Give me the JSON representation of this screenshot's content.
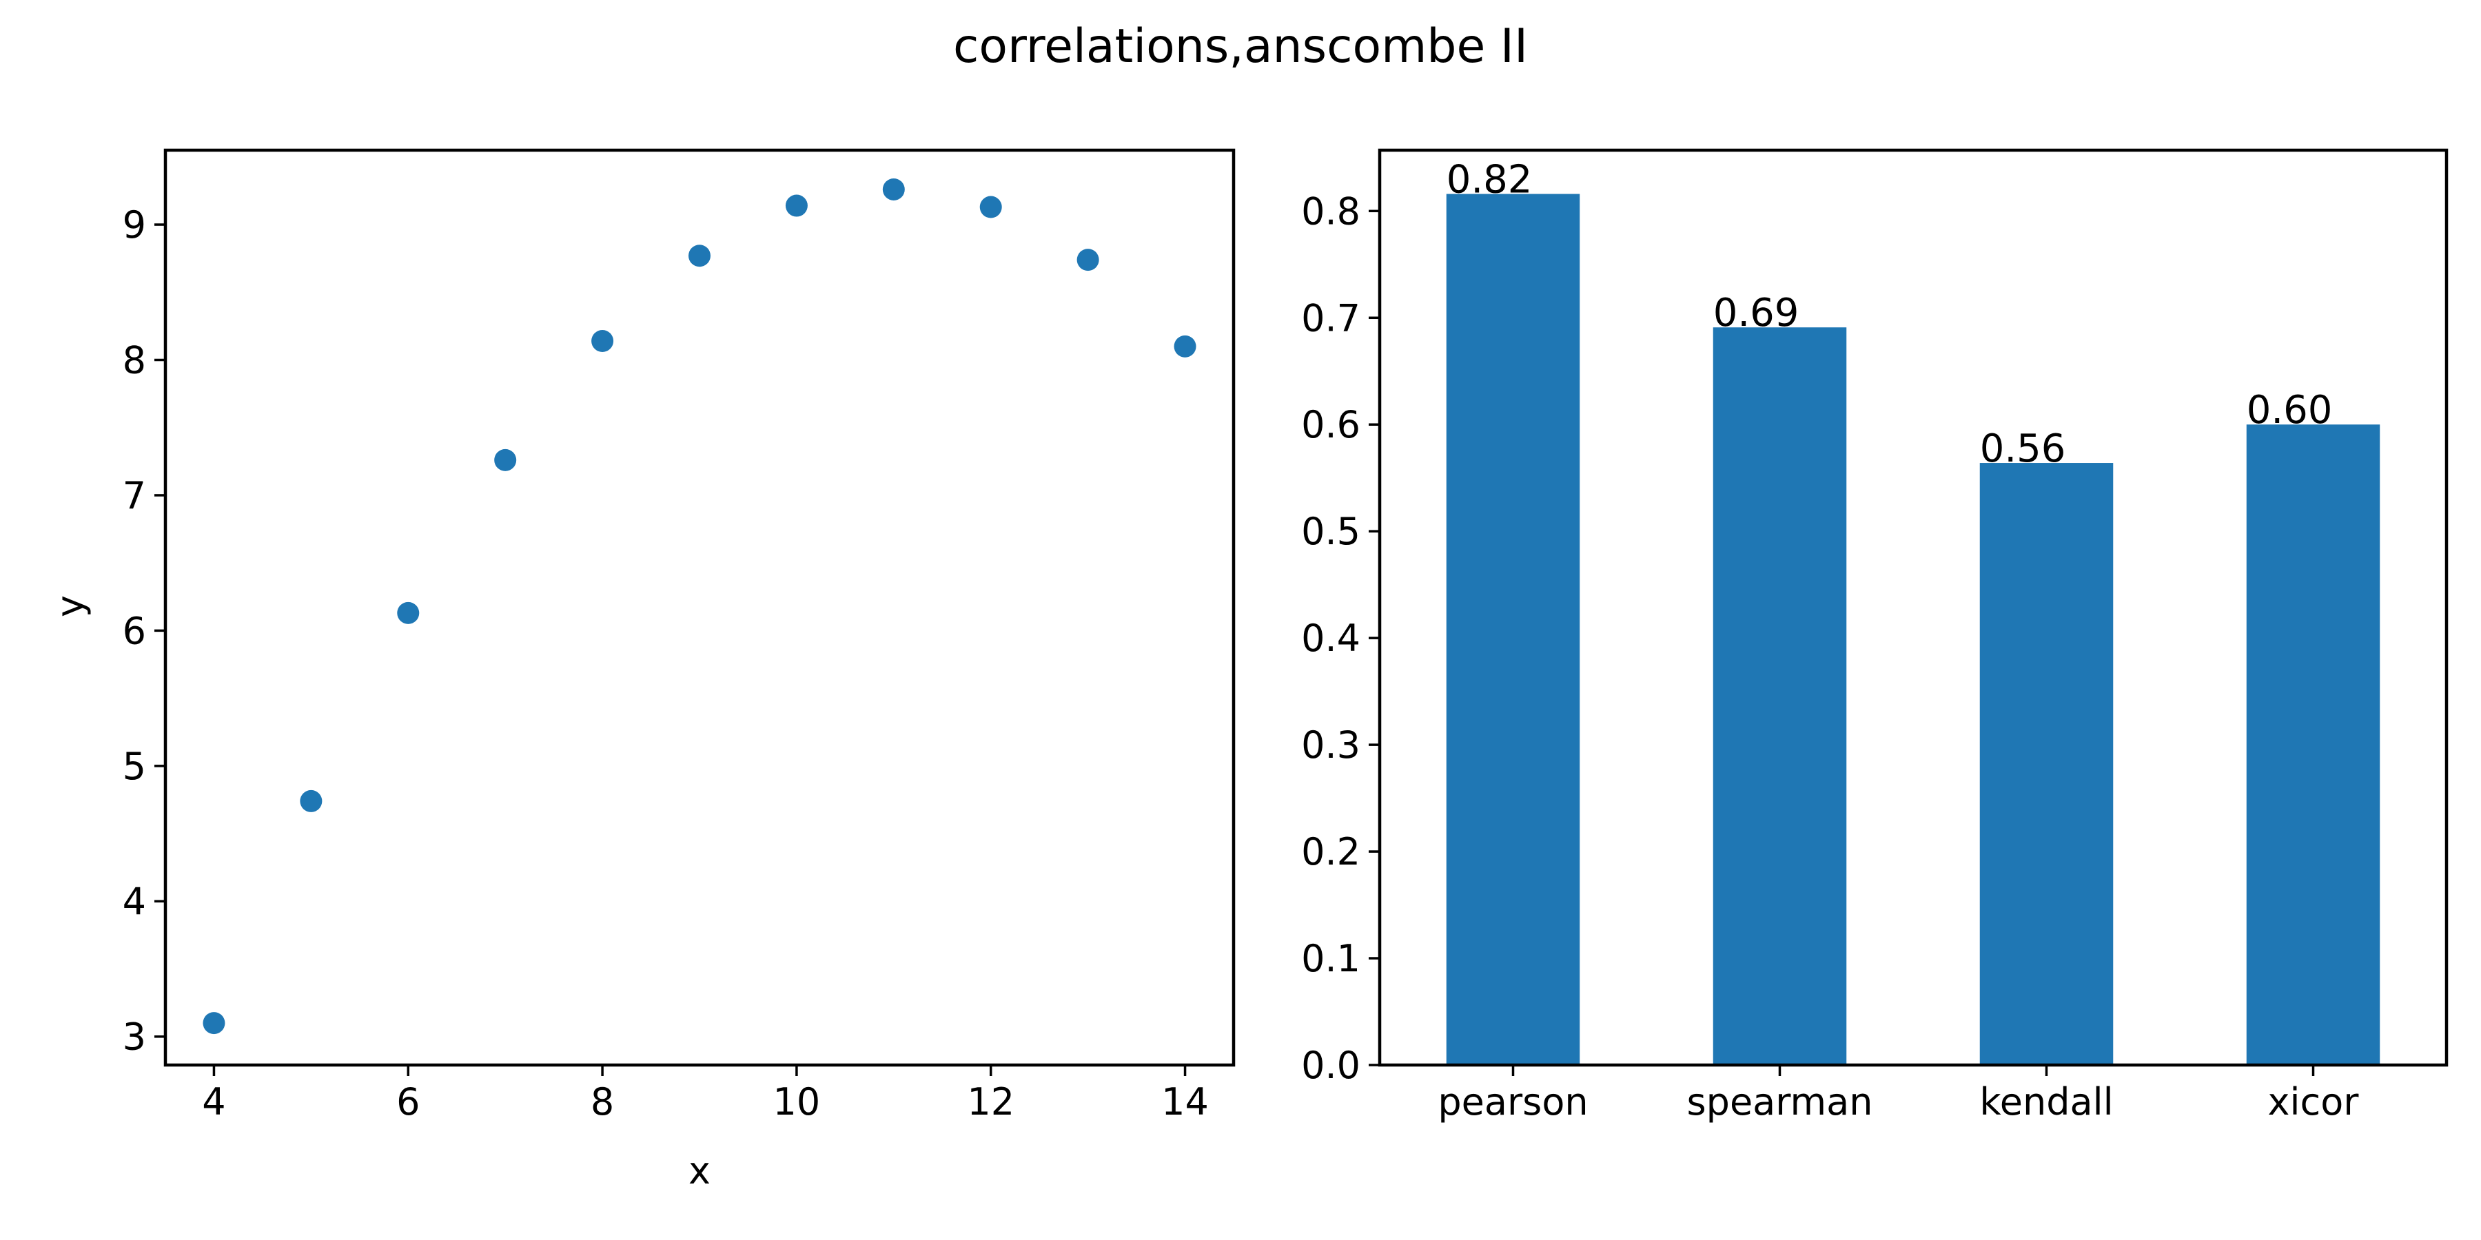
{
  "figure": {
    "title": "correlations,anscombe II"
  },
  "colors": {
    "marker": "#1f77b4",
    "bar": "#1f77b4",
    "axes": "#000000"
  },
  "chart_data": [
    {
      "type": "scatter",
      "xlabel": "x",
      "ylabel": "y",
      "xlim": [
        3.5,
        14.5
      ],
      "ylim": [
        2.79,
        9.55
      ],
      "xticks": [
        4,
        6,
        8,
        10,
        12,
        14
      ],
      "yticks": [
        3,
        4,
        5,
        6,
        7,
        8,
        9
      ],
      "grid": false,
      "points": [
        {
          "x": 4,
          "y": 3.1
        },
        {
          "x": 5,
          "y": 4.74
        },
        {
          "x": 6,
          "y": 6.13
        },
        {
          "x": 7,
          "y": 7.26
        },
        {
          "x": 8,
          "y": 8.14
        },
        {
          "x": 9,
          "y": 8.77
        },
        {
          "x": 10,
          "y": 9.14
        },
        {
          "x": 11,
          "y": 9.26
        },
        {
          "x": 12,
          "y": 9.13
        },
        {
          "x": 13,
          "y": 8.74
        },
        {
          "x": 14,
          "y": 8.1
        }
      ]
    },
    {
      "type": "bar",
      "categories": [
        "pearson",
        "spearman",
        "kendall",
        "xicor"
      ],
      "values": [
        0.816,
        0.691,
        0.564,
        0.6
      ],
      "value_labels": [
        "0.82",
        "0.69",
        "0.56",
        "0.60"
      ],
      "ylim": [
        0,
        0.857
      ],
      "yticks": [
        "0.0",
        "0.1",
        "0.2",
        "0.3",
        "0.4",
        "0.5",
        "0.6",
        "0.7",
        "0.8"
      ],
      "grid": false
    }
  ]
}
